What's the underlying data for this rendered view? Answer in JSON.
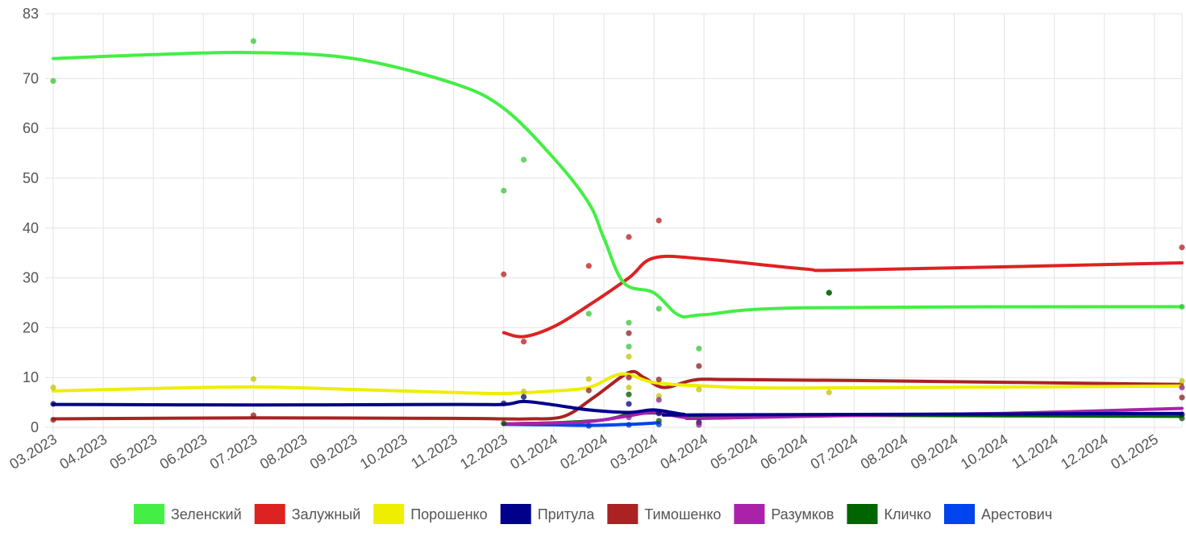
{
  "chart_data": {
    "type": "line",
    "title": "",
    "xlabel": "",
    "ylabel": "",
    "ylim": [
      0,
      83
    ],
    "xlim": [
      0,
      22.55
    ],
    "x_ticks": [
      "03.2023",
      "04.2023",
      "05.2023",
      "06.2023",
      "07.2023",
      "08.2023",
      "09.2023",
      "10.2023",
      "11.2023",
      "12.2023",
      "01.2024",
      "02.2024",
      "03.2024",
      "04.2024",
      "05.2024",
      "06.2024",
      "07.2024",
      "08.2024",
      "09.2024",
      "10.2024",
      "11.2024",
      "12.2024",
      "01.2025"
    ],
    "y_ticks": [
      0,
      10,
      20,
      30,
      40,
      50,
      60,
      70,
      83
    ],
    "grid": true,
    "legend_position": "bottom",
    "series": [
      {
        "name": "Зеленский",
        "color": "#44ee44",
        "trend": [
          [
            0,
            74
          ],
          [
            2,
            74.8
          ],
          [
            4,
            75.2
          ],
          [
            6,
            74
          ],
          [
            8,
            69
          ],
          [
            9,
            64
          ],
          [
            10,
            54
          ],
          [
            10.7,
            45
          ],
          [
            11,
            38
          ],
          [
            11.4,
            29
          ],
          [
            12,
            27
          ],
          [
            12.5,
            22.5
          ],
          [
            13,
            22.6
          ],
          [
            15,
            24
          ],
          [
            22.55,
            24.2
          ]
        ],
        "points": [
          [
            0,
            69.5
          ],
          [
            4,
            77.5
          ],
          [
            9,
            47.5
          ],
          [
            9.4,
            53.7
          ],
          [
            10.7,
            22.8
          ],
          [
            11.5,
            21
          ],
          [
            11.5,
            16.2
          ],
          [
            12.1,
            23.8
          ],
          [
            12.9,
            15.8
          ],
          [
            15.5,
            27
          ],
          [
            22.55,
            24.2
          ]
        ]
      },
      {
        "name": "Залужный",
        "color": "#dd2222",
        "trend": [
          [
            9,
            19
          ],
          [
            9.4,
            18.2
          ],
          [
            10,
            20.2
          ],
          [
            10.7,
            24.5
          ],
          [
            11.5,
            30
          ],
          [
            12,
            34
          ],
          [
            13,
            33.8
          ],
          [
            15,
            31.8
          ],
          [
            16,
            31.6
          ],
          [
            22.55,
            33
          ]
        ],
        "points": [
          [
            9,
            30.7
          ],
          [
            9.4,
            17.2
          ],
          [
            10.7,
            32.4
          ],
          [
            11.5,
            38.2
          ],
          [
            12.1,
            41.5
          ],
          [
            22.55,
            36.1
          ]
        ]
      },
      {
        "name": "Порошенко",
        "color": "#eeee00",
        "trend": [
          [
            0,
            7.3
          ],
          [
            2,
            7.8
          ],
          [
            4,
            8.1
          ],
          [
            6,
            7.6
          ],
          [
            8,
            7
          ],
          [
            9,
            6.8
          ],
          [
            10,
            7.3
          ],
          [
            10.7,
            8
          ],
          [
            11.2,
            10.3
          ],
          [
            11.5,
            10.6
          ],
          [
            12,
            9
          ],
          [
            13,
            8.3
          ],
          [
            15,
            7.9
          ],
          [
            22.55,
            8.3
          ]
        ],
        "points": [
          [
            0,
            8
          ],
          [
            4,
            9.7
          ],
          [
            9.4,
            7.2
          ],
          [
            10.7,
            9.7
          ],
          [
            11.5,
            14.2
          ],
          [
            11.5,
            8
          ],
          [
            12.1,
            6.3
          ],
          [
            12.9,
            7.6
          ],
          [
            15.5,
            7
          ],
          [
            22.55,
            9.3
          ]
        ]
      },
      {
        "name": "Притула",
        "color": "#00008b",
        "trend": [
          [
            0,
            4.6
          ],
          [
            4,
            4.5
          ],
          [
            8,
            4.6
          ],
          [
            9,
            4.6
          ],
          [
            9.4,
            5.2
          ],
          [
            10,
            4.5
          ],
          [
            10.7,
            3.5
          ],
          [
            11.5,
            3
          ],
          [
            12,
            3.5
          ],
          [
            12.6,
            2.6
          ],
          [
            13,
            2.5
          ],
          [
            22.55,
            2.8
          ]
        ],
        "points": [
          [
            0,
            4.7
          ],
          [
            9,
            4.8
          ],
          [
            9.4,
            6.1
          ],
          [
            11.5,
            4.7
          ],
          [
            12.1,
            2.8
          ],
          [
            12.9,
            1
          ],
          [
            22.55,
            2.6
          ]
        ]
      },
      {
        "name": "Тимошенко",
        "color": "#aa2222",
        "trend": [
          [
            0,
            1.7
          ],
          [
            4,
            1.9
          ],
          [
            8,
            1.8
          ],
          [
            9,
            1.7
          ],
          [
            9.5,
            1.7
          ],
          [
            10.2,
            2.2
          ],
          [
            10.8,
            6
          ],
          [
            11.5,
            11
          ],
          [
            11.8,
            10
          ],
          [
            12.2,
            8
          ],
          [
            12.8,
            9.5
          ],
          [
            13.5,
            9.6
          ],
          [
            16,
            9.4
          ],
          [
            22.55,
            8.6
          ]
        ],
        "points": [
          [
            0,
            1.5
          ],
          [
            4,
            2.4
          ],
          [
            10.7,
            7.4
          ],
          [
            11.5,
            18.9
          ],
          [
            11.5,
            10
          ],
          [
            12.1,
            9.6
          ],
          [
            12.9,
            12.3
          ],
          [
            22.55,
            6
          ]
        ]
      },
      {
        "name": "Разумков",
        "color": "#aa22aa",
        "trend": [
          [
            9,
            0.7
          ],
          [
            9.5,
            0.8
          ],
          [
            10.5,
            1
          ],
          [
            11,
            1.5
          ],
          [
            11.5,
            2.3
          ],
          [
            12,
            3
          ],
          [
            12.6,
            2
          ],
          [
            13,
            1.8
          ],
          [
            16,
            2.4
          ],
          [
            19,
            2.8
          ],
          [
            22.55,
            3.8
          ]
        ],
        "points": [
          [
            11.5,
            2
          ],
          [
            12.1,
            5.5
          ],
          [
            12.9,
            0.5
          ],
          [
            22.55,
            8
          ]
        ]
      },
      {
        "name": "Кличко",
        "color": "#006400",
        "trend": [
          [
            9,
            0.7
          ],
          [
            10,
            0.9
          ],
          [
            11,
            1.5
          ],
          [
            11.5,
            2.6
          ],
          [
            12,
            2.9
          ],
          [
            12.6,
            2.5
          ],
          [
            13,
            2.4
          ],
          [
            16,
            2.4
          ],
          [
            22.55,
            2.2
          ]
        ],
        "points": [
          [
            9,
            0.8
          ],
          [
            11.5,
            6.6
          ],
          [
            12.1,
            1.3
          ],
          [
            15.5,
            27
          ],
          [
            22.55,
            1.8
          ]
        ]
      },
      {
        "name": "Арестович",
        "color": "#0044ee",
        "trend": [
          [
            9,
            0.6
          ],
          [
            10,
            0.5
          ],
          [
            10.7,
            0.4
          ],
          [
            11.5,
            0.6
          ],
          [
            12.1,
            0.9
          ]
        ],
        "points": [
          [
            10.7,
            0.3
          ],
          [
            11.5,
            0.5
          ],
          [
            12.1,
            0.6
          ]
        ]
      }
    ]
  }
}
